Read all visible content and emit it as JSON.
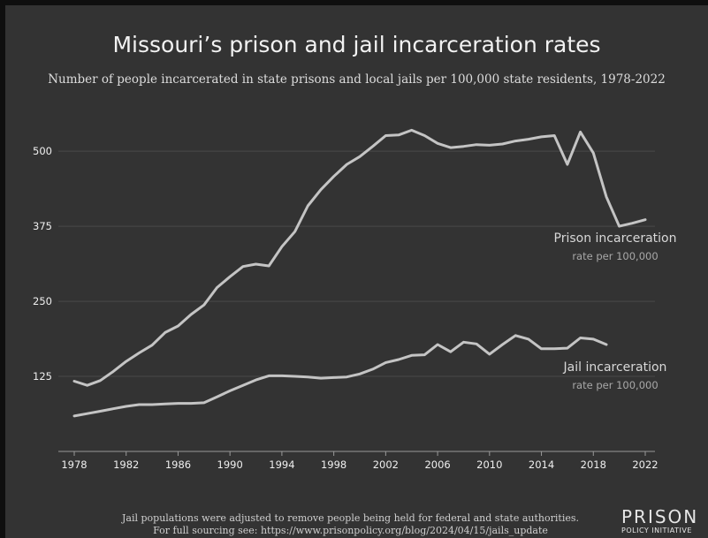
{
  "chart_data": {
    "type": "line",
    "title": "Missouri’s prison and jail incarceration rates",
    "subtitle": "Number of people incarcerated in state prisons and local jails per 100,000 state residents, 1978-2022",
    "xlabel": "",
    "ylabel": "",
    "xlim": [
      1978,
      2022
    ],
    "ylim": [
      0,
      565
    ],
    "x_ticks": [
      "1978",
      "1982",
      "1986",
      "1990",
      "1994",
      "1998",
      "2002",
      "2006",
      "2010",
      "2014",
      "2018",
      "2022"
    ],
    "y_ticks": [
      "500",
      "375",
      "250",
      "125"
    ],
    "y_tick_values": [
      500,
      375,
      250,
      125
    ],
    "grid": "horizontal",
    "series": [
      {
        "name": "Prison incarceration",
        "label_sub": "rate per 100,000",
        "x": [
          1978,
          1979,
          1980,
          1981,
          1982,
          1983,
          1984,
          1985,
          1986,
          1987,
          1988,
          1989,
          1990,
          1991,
          1992,
          1993,
          1994,
          1995,
          1996,
          1997,
          1998,
          1999,
          2000,
          2001,
          2002,
          2003,
          2004,
          2005,
          2006,
          2007,
          2008,
          2009,
          2010,
          2011,
          2012,
          2013,
          2014,
          2015,
          2016,
          2017,
          2018,
          2019,
          2020,
          2021,
          2022
        ],
        "values": [
          117,
          110,
          118,
          133,
          150,
          164,
          177,
          198,
          209,
          228,
          244,
          273,
          291,
          308,
          312,
          309,
          341,
          366,
          409,
          436,
          458,
          478,
          491,
          508,
          526,
          527,
          535,
          526,
          513,
          506,
          508,
          511,
          510,
          512,
          517,
          520,
          524,
          526,
          478,
          532,
          497,
          424,
          375,
          380,
          386
        ]
      },
      {
        "name": "Jail incarceration",
        "label_sub": "rate per 100,000",
        "x": [
          1978,
          1979,
          1980,
          1981,
          1982,
          1983,
          1984,
          1985,
          1986,
          1987,
          1988,
          1989,
          1990,
          1991,
          1992,
          1993,
          1994,
          1995,
          1996,
          1997,
          1998,
          1999,
          2000,
          2001,
          2002,
          2003,
          2004,
          2005,
          2006,
          2007,
          2008,
          2009,
          2010,
          2011,
          2012,
          2013,
          2014,
          2015,
          2016,
          2017,
          2018,
          2019
        ],
        "values": [
          59,
          63,
          67,
          71,
          75,
          78,
          78,
          79,
          80,
          80,
          81,
          91,
          101,
          110,
          119,
          126,
          126,
          125,
          124,
          122,
          123,
          124,
          129,
          137,
          148,
          153,
          160,
          161,
          178,
          166,
          182,
          179,
          162,
          178,
          193,
          187,
          171,
          171,
          172,
          189,
          187,
          178
        ]
      }
    ],
    "colors": {
      "line": "#c4c4c4",
      "grid": "#4a4a4a",
      "axis": "#9a9a9a",
      "tick_label": "#efefef",
      "series_label": "#d8d8d8",
      "series_sub": "#a8a8a8"
    }
  },
  "footnote": {
    "line1": "Jail populations were adjusted to remove people being held for federal and state authorities.",
    "line2": "For full sourcing see: https://www.prisonpolicy.org/blog/2024/04/15/jails_update"
  },
  "logo": {
    "top": "PRISON",
    "bottom": "POLICY INITIATIVE"
  }
}
